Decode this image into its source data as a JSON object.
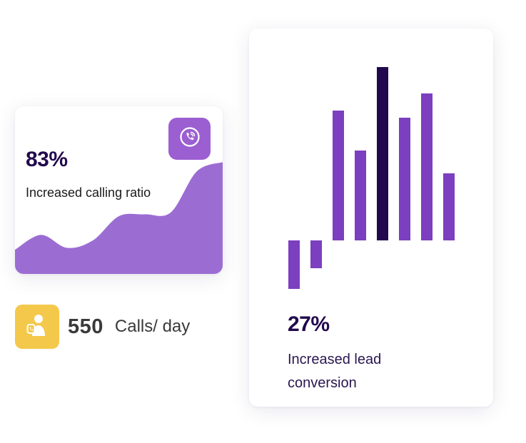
{
  "calling_card": {
    "stat": "83%",
    "label": "Increased calling ratio",
    "icon": "phone-icon",
    "accent": "#9b5fd1"
  },
  "calls_per_day": {
    "count": "550",
    "unit": "Calls/ day",
    "icon": "phone-support-icon",
    "badge_color": "#f4c84a"
  },
  "lead_card": {
    "stat": "27%",
    "label": "Increased lead conversion",
    "bar_color": "#7b3fbf",
    "highlight_color": "#22084d"
  },
  "chart_data": [
    {
      "type": "area",
      "x": [
        0,
        1,
        2,
        3,
        4,
        5,
        6,
        7,
        8
      ],
      "values": [
        1.3,
        2.1,
        1.4,
        1.8,
        3.1,
        3.2,
        3.3,
        5.5,
        6.0
      ],
      "ylim": [
        0,
        9
      ],
      "grid": false,
      "color": "#9b6dd3"
    },
    {
      "type": "bar",
      "categories": [
        "1",
        "2",
        "3",
        "4",
        "5",
        "6",
        "7",
        "8",
        "9"
      ],
      "values": [
        -68,
        -39,
        182,
        126,
        243,
        172,
        206,
        94,
        0
      ],
      "highlight_index": 4,
      "grid": false
    }
  ]
}
